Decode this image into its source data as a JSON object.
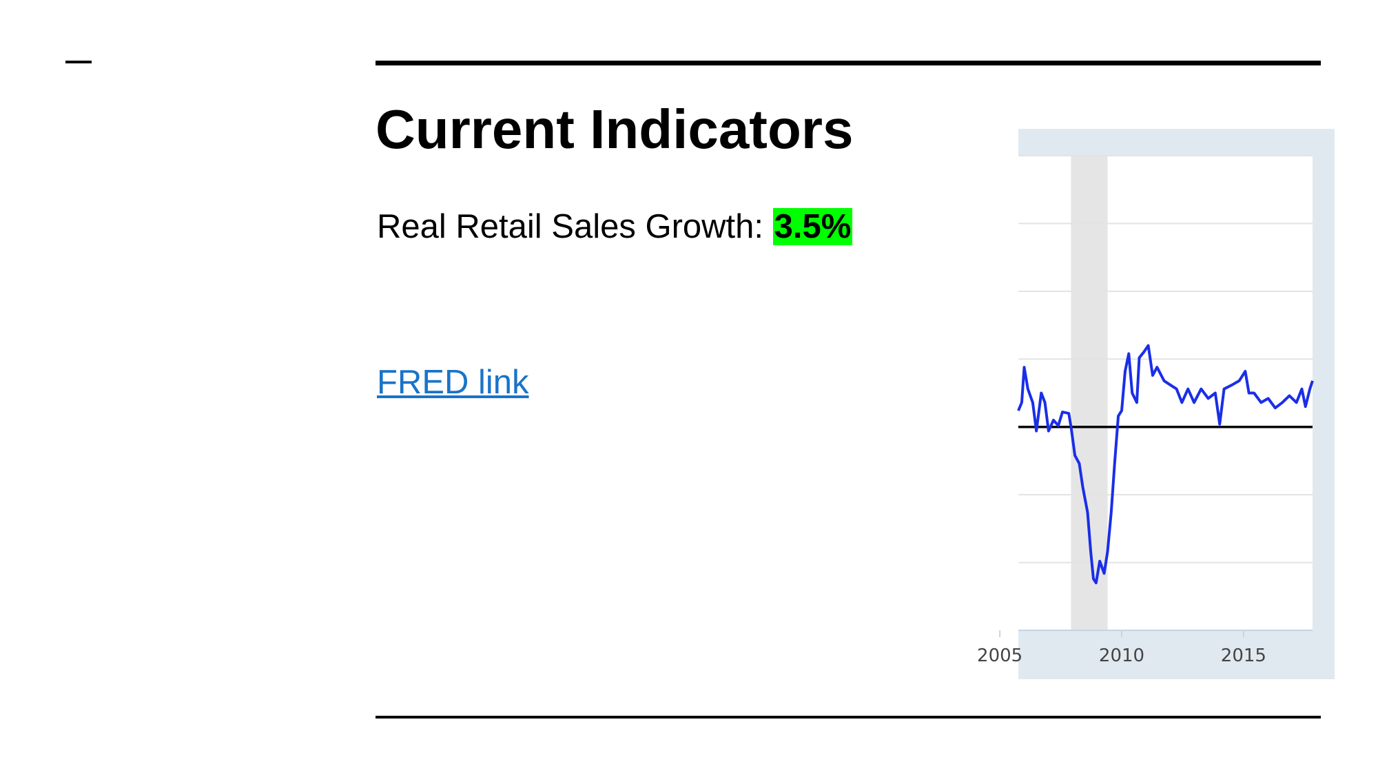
{
  "slide": {
    "title": "Current Indicators",
    "indicator_label": "Real Retail Sales Growth:",
    "indicator_value": "3.5%",
    "link": "FRED link"
  },
  "chart_data": {
    "type": "line",
    "x": [
      2005.76,
      2005.9,
      2006.0,
      2006.15,
      2006.35,
      2006.5,
      2006.7,
      2006.85,
      2007.0,
      2007.2,
      2007.4,
      2007.57,
      2007.83,
      2007.93,
      2008.08,
      2008.26,
      2008.4,
      2008.6,
      2008.73,
      2008.84,
      2008.95,
      2009.1,
      2009.28,
      2009.42,
      2009.57,
      2009.71,
      2009.86,
      2010.0,
      2010.14,
      2010.29,
      2010.43,
      2010.62,
      2010.72,
      2010.9,
      2011.09,
      2011.27,
      2011.45,
      2011.74,
      2011.99,
      2012.25,
      2012.47,
      2012.72,
      2012.97,
      2013.26,
      2013.55,
      2013.84,
      2014.02,
      2014.2,
      2014.53,
      2014.82,
      2015.07,
      2015.22,
      2015.43,
      2015.72,
      2016.01,
      2016.3,
      2016.59,
      2016.88,
      2017.17,
      2017.39,
      2017.54,
      2017.72,
      2017.83
    ],
    "series": [
      {
        "color": "#1a2ee8",
        "values": [
          1.2,
          1.8,
          4.4,
          2.8,
          1.8,
          -0.3,
          2.5,
          1.8,
          -0.3,
          0.5,
          0.1,
          1.1,
          1.0,
          -0.1,
          -2.1,
          -2.7,
          -4.4,
          -6.3,
          -9.2,
          -11.2,
          -11.5,
          -9.9,
          -10.8,
          -9.2,
          -6.3,
          -2.7,
          0.8,
          1.2,
          4.1,
          5.4,
          2.5,
          1.8,
          5.1,
          5.5,
          6.0,
          3.8,
          4.4,
          3.4,
          3.1,
          2.8,
          1.8,
          2.8,
          1.8,
          2.8,
          2.1,
          2.5,
          0.2,
          2.8,
          3.1,
          3.4,
          4.1,
          2.5,
          2.5,
          1.8,
          2.1,
          1.4,
          1.8,
          2.3,
          1.8,
          2.8,
          1.5,
          2.8,
          3.4
        ]
      }
    ],
    "recessions": [
      [
        2007.92,
        2009.42
      ]
    ],
    "xlim": [
      2005.76,
      2017.83
    ],
    "xticks": [
      2005,
      2010,
      2015
    ],
    "ylim": [
      -15,
      20
    ],
    "yticks": [
      -15,
      -10,
      -5,
      0,
      5,
      10,
      15,
      20
    ],
    "grid": true
  }
}
